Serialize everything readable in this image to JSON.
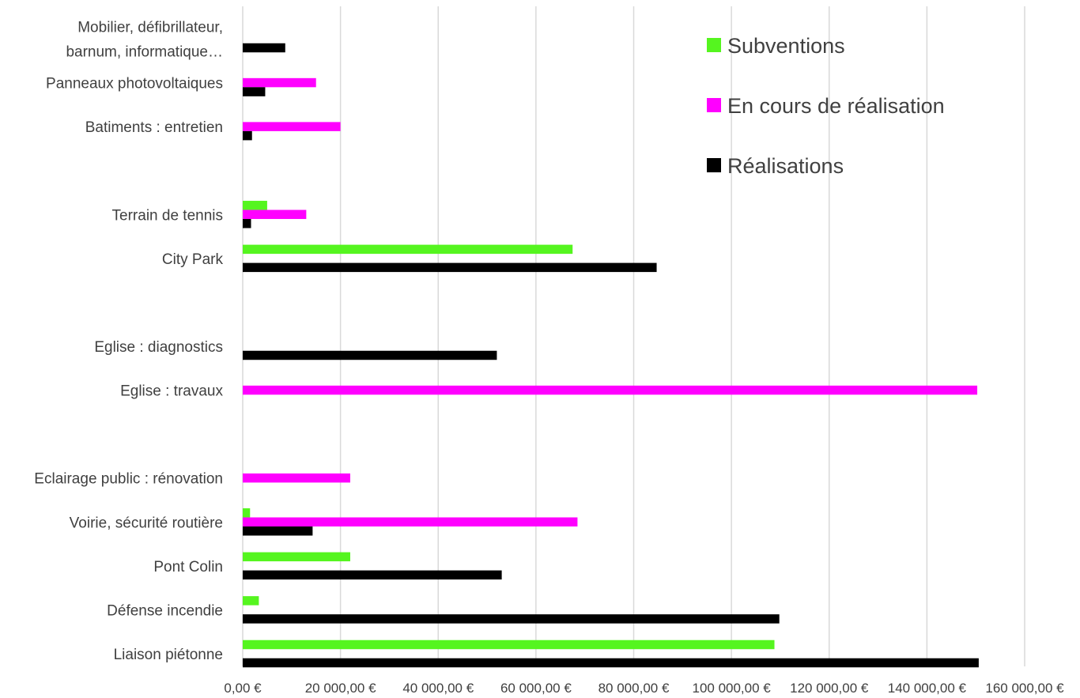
{
  "chart_data": {
    "type": "bar",
    "orientation": "horizontal",
    "categories": [
      "Mobilier, défibrillateur, barnum, informatique…",
      "Panneaux photovoltaiques",
      "Batiments : entretien",
      "",
      "Terrain de tennis",
      "City Park",
      "",
      "Eglise : diagnostics",
      "Eglise : travaux",
      "",
      "Eclairage public : rénovation",
      "Voirie, sécurité routière",
      "Pont Colin",
      "Défense incendie",
      "Liaison piétonne"
    ],
    "category_label_lines": [
      [
        "Mobilier, défibrillateur,",
        "barnum, informatique…"
      ],
      [
        "Panneaux photovoltaiques"
      ],
      [
        "Batiments : entretien"
      ],
      [],
      [
        "Terrain de tennis"
      ],
      [
        "City Park"
      ],
      [],
      [
        "Eglise : diagnostics"
      ],
      [
        "Eglise : travaux"
      ],
      [],
      [
        "Eclairage public : rénovation"
      ],
      [
        "Voirie, sécurité routière"
      ],
      [
        "Pont Colin"
      ],
      [
        "Défense incendie"
      ],
      [
        "Liaison piétonne"
      ]
    ],
    "series": [
      {
        "name": "Subventions",
        "color": "#55f51f",
        "values": [
          0,
          0,
          0,
          0,
          5000,
          67500,
          0,
          0,
          0,
          0,
          0,
          1500,
          22000,
          3300,
          108800
        ]
      },
      {
        "name": "En cours de réalisation",
        "color": "#ff00ff",
        "values": [
          0,
          15000,
          20000,
          0,
          13000,
          0,
          0,
          0,
          150300,
          0,
          22000,
          68500,
          0,
          0,
          0
        ]
      },
      {
        "name": "Réalisations",
        "color": "#000000",
        "values": [
          8700,
          4600,
          1900,
          0,
          1700,
          84700,
          0,
          52000,
          0,
          0,
          0,
          14300,
          53000,
          109800,
          150600
        ]
      }
    ],
    "xlim": [
      0,
      160000
    ],
    "ticks": [
      {
        "value": 0,
        "label": "0,00 €"
      },
      {
        "value": 20000,
        "label": "20 000,00 €"
      },
      {
        "value": 40000,
        "label": "40 000,00 €"
      },
      {
        "value": 60000,
        "label": "60 000,00 €"
      },
      {
        "value": 80000,
        "label": "80 000,00 €"
      },
      {
        "value": 100000,
        "label": "100 000,00 €"
      },
      {
        "value": 120000,
        "label": "120 000,00 €"
      },
      {
        "value": 140000,
        "label": "140 000,00 €"
      },
      {
        "value": 160000,
        "label": "160 000,00 €"
      }
    ],
    "title": "",
    "xlabel": "",
    "ylabel": "",
    "grid": true,
    "legend": {
      "position": "top-right",
      "entries": [
        "Subventions",
        "En cours de réalisation",
        "Réalisations"
      ]
    }
  }
}
